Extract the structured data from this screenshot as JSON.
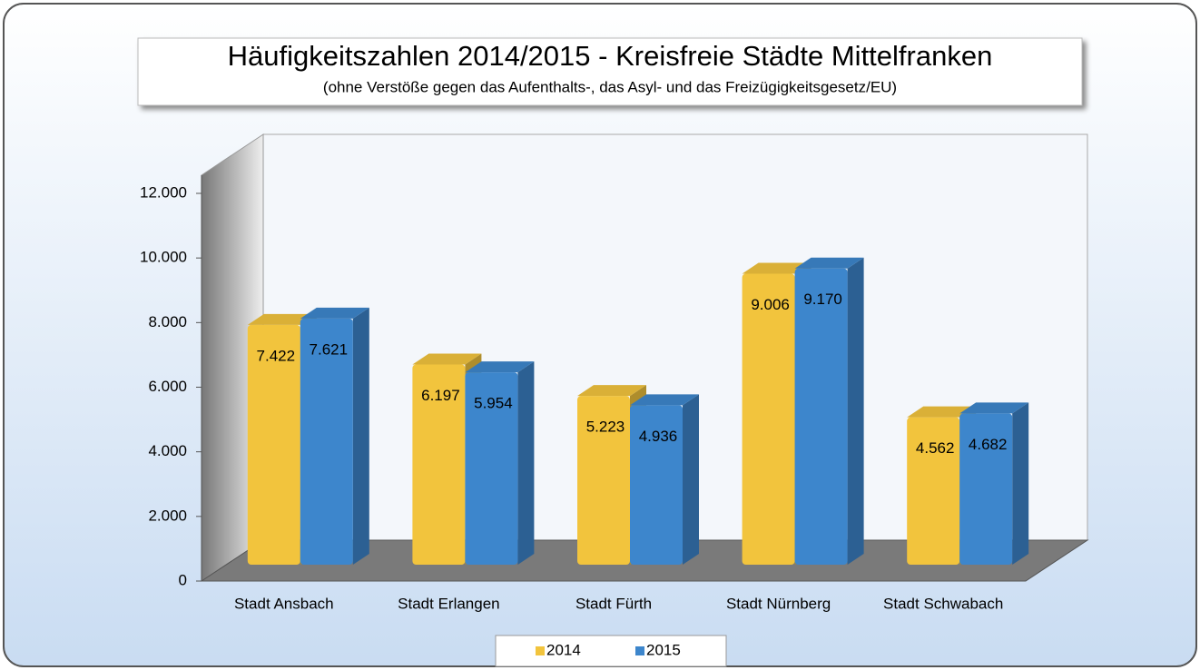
{
  "chart_data": {
    "type": "bar3d",
    "title": "Häufigkeitszahlen 2014/2015 - Kreisfreie Städte Mittelfranken",
    "subtitle": "(ohne Verstöße gegen das Aufenthalts-, das Asyl- und das Freizügigkeitsgesetz/EU)",
    "categories": [
      "Stadt Ansbach",
      "Stadt Erlangen",
      "Stadt Fürth",
      "Stadt Nürnberg",
      "Stadt Schwabach"
    ],
    "series": [
      {
        "name": "2014",
        "color": "#f2c43d",
        "values": [
          7422,
          6197,
          5223,
          9006,
          4562
        ],
        "value_labels": [
          "7.422",
          "6.197",
          "5.223",
          "9.006",
          "4.562"
        ]
      },
      {
        "name": "2015",
        "color": "#3d86cc",
        "values": [
          7621,
          5954,
          4936,
          9170,
          4682
        ],
        "value_labels": [
          "7.621",
          "5.954",
          "4.936",
          "9.170",
          "4.682"
        ]
      }
    ],
    "ylim": [
      0,
      12000
    ],
    "yticks": [
      0,
      {
        "value": 2000,
        "label": "2.000"
      },
      {
        "value": 4000,
        "label": "4.000"
      },
      {
        "value": 6000,
        "label": "6.000"
      },
      {
        "value": 8000,
        "label": "8.000"
      },
      {
        "value": 10000,
        "label": "10.000"
      },
      {
        "value": 12000,
        "label": "12.000"
      }
    ],
    "legend": "bottom"
  }
}
